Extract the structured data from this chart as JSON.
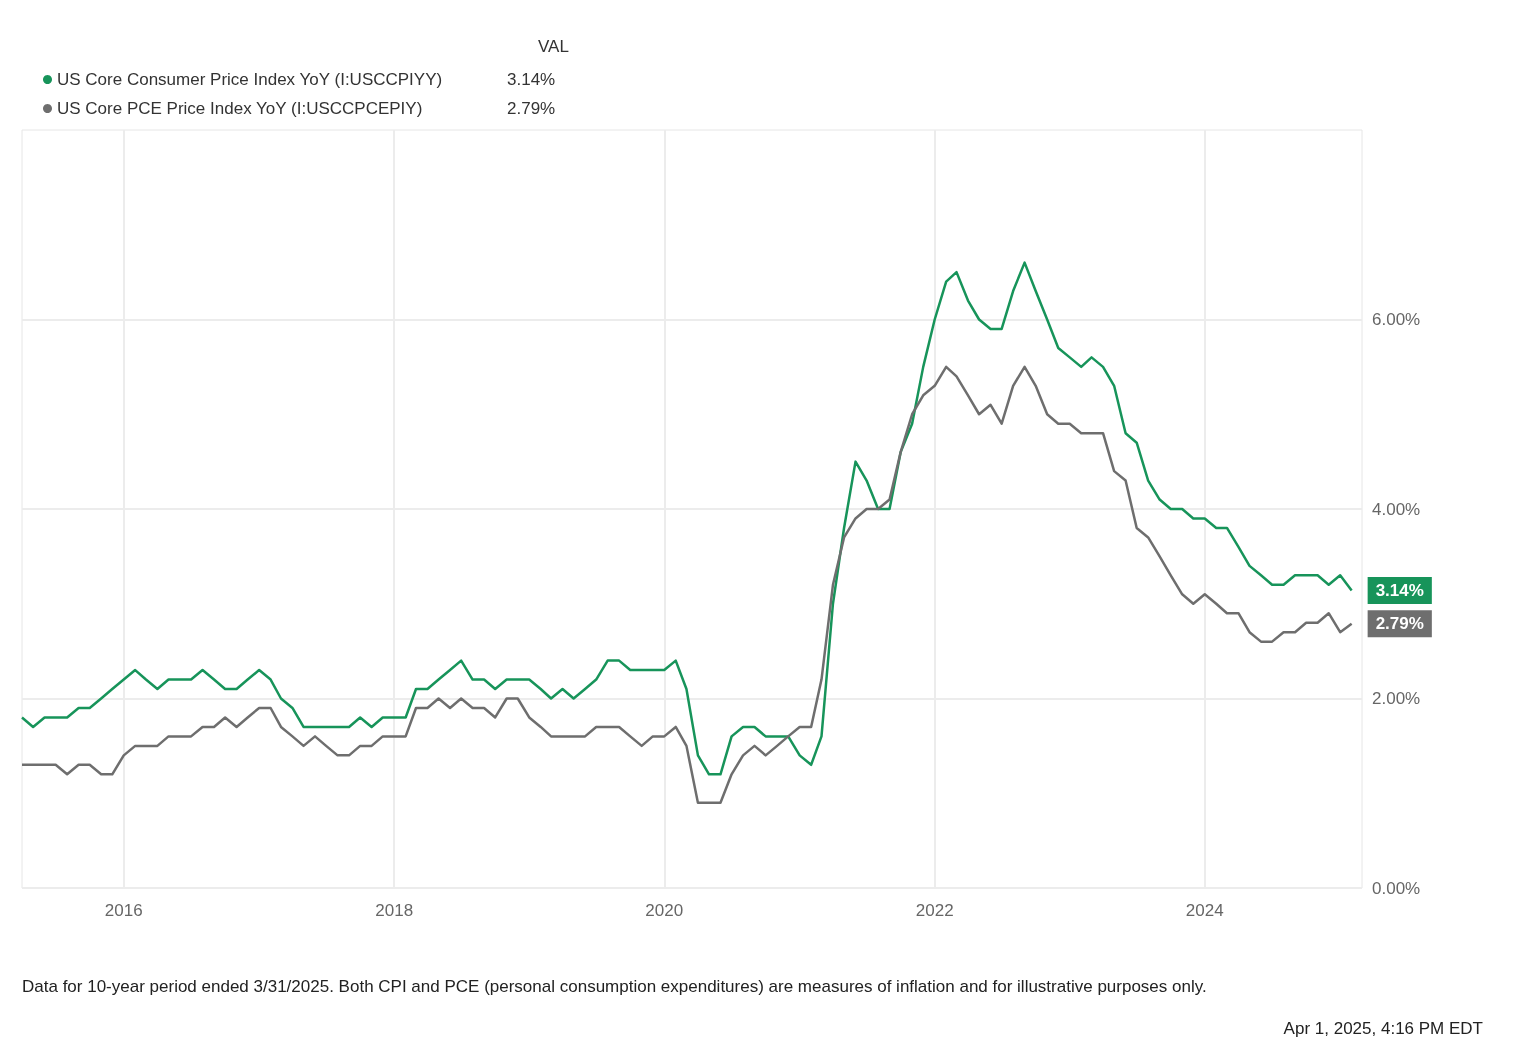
{
  "chart_data": {
    "type": "line",
    "legend_title": "VAL",
    "legend": "top left",
    "grid": true,
    "marker": "none",
    "line_style": "solid",
    "xlim": [
      "2015-04",
      "2025-03"
    ],
    "xticks": [
      "2016",
      "2018",
      "2020",
      "2022",
      "2024"
    ],
    "ylim": [
      0,
      8
    ],
    "yticks": [
      {
        "value": 0,
        "label": "0.00%"
      },
      {
        "value": 2,
        "label": "2.00%"
      },
      {
        "value": 4,
        "label": "4.00%"
      },
      {
        "value": 6,
        "label": "6.00%"
      }
    ],
    "x": [
      "2015-04",
      "2015-05",
      "2015-06",
      "2015-07",
      "2015-08",
      "2015-09",
      "2015-10",
      "2015-11",
      "2015-12",
      "2016-01",
      "2016-02",
      "2016-03",
      "2016-04",
      "2016-05",
      "2016-06",
      "2016-07",
      "2016-08",
      "2016-09",
      "2016-10",
      "2016-11",
      "2016-12",
      "2017-01",
      "2017-02",
      "2017-03",
      "2017-04",
      "2017-05",
      "2017-06",
      "2017-07",
      "2017-08",
      "2017-09",
      "2017-10",
      "2017-11",
      "2017-12",
      "2018-01",
      "2018-02",
      "2018-03",
      "2018-04",
      "2018-05",
      "2018-06",
      "2018-07",
      "2018-08",
      "2018-09",
      "2018-10",
      "2018-11",
      "2018-12",
      "2019-01",
      "2019-02",
      "2019-03",
      "2019-04",
      "2019-05",
      "2019-06",
      "2019-07",
      "2019-08",
      "2019-09",
      "2019-10",
      "2019-11",
      "2019-12",
      "2020-01",
      "2020-02",
      "2020-03",
      "2020-04",
      "2020-05",
      "2020-06",
      "2020-07",
      "2020-08",
      "2020-09",
      "2020-10",
      "2020-11",
      "2020-12",
      "2021-01",
      "2021-02",
      "2021-03",
      "2021-04",
      "2021-05",
      "2021-06",
      "2021-07",
      "2021-08",
      "2021-09",
      "2021-10",
      "2021-11",
      "2021-12",
      "2022-01",
      "2022-02",
      "2022-03",
      "2022-04",
      "2022-05",
      "2022-06",
      "2022-07",
      "2022-08",
      "2022-09",
      "2022-10",
      "2022-11",
      "2022-12",
      "2023-01",
      "2023-02",
      "2023-03",
      "2023-04",
      "2023-05",
      "2023-06",
      "2023-07",
      "2023-08",
      "2023-09",
      "2023-10",
      "2023-11",
      "2023-12",
      "2024-01",
      "2024-02",
      "2024-03",
      "2024-04",
      "2024-05",
      "2024-06",
      "2024-07",
      "2024-08",
      "2024-09",
      "2024-10",
      "2024-11",
      "2024-12",
      "2025-01",
      "2025-02"
    ],
    "series": [
      {
        "name": "US Core Consumer Price Index YoY (I:USCCPIYY)",
        "color": "#17945a",
        "values": [
          1.8,
          1.7,
          1.8,
          1.8,
          1.8,
          1.9,
          1.9,
          2.0,
          2.1,
          2.2,
          2.3,
          2.2,
          2.1,
          2.2,
          2.2,
          2.2,
          2.3,
          2.2,
          2.1,
          2.1,
          2.2,
          2.3,
          2.2,
          2.0,
          1.9,
          1.7,
          1.7,
          1.7,
          1.7,
          1.7,
          1.8,
          1.7,
          1.8,
          1.8,
          1.8,
          2.1,
          2.1,
          2.2,
          2.3,
          2.4,
          2.2,
          2.2,
          2.1,
          2.2,
          2.2,
          2.2,
          2.1,
          2.0,
          2.1,
          2.0,
          2.1,
          2.2,
          2.4,
          2.4,
          2.3,
          2.3,
          2.3,
          2.3,
          2.4,
          2.1,
          1.4,
          1.2,
          1.2,
          1.6,
          1.7,
          1.7,
          1.6,
          1.6,
          1.6,
          1.4,
          1.3,
          1.6,
          3.0,
          3.8,
          4.5,
          4.3,
          4.0,
          4.0,
          4.6,
          4.9,
          5.5,
          6.0,
          6.4,
          6.5,
          6.2,
          6.0,
          5.9,
          5.9,
          6.3,
          6.6,
          6.3,
          6.0,
          5.7,
          5.6,
          5.5,
          5.6,
          5.5,
          5.3,
          4.8,
          4.7,
          4.3,
          4.1,
          4.0,
          4.0,
          3.9,
          3.9,
          3.8,
          3.8,
          3.6,
          3.4,
          3.3,
          3.2,
          3.2,
          3.3,
          3.3,
          3.3,
          3.2,
          3.3,
          3.14
        ],
        "value_labels": [
          null,
          null,
          null,
          null,
          null,
          null,
          null,
          null,
          null,
          null,
          null,
          null,
          null,
          null,
          null,
          null,
          null,
          null,
          null,
          null,
          null,
          null,
          null,
          null,
          null,
          null,
          null,
          null,
          null,
          null,
          null,
          null,
          null,
          null,
          null,
          null,
          null,
          null,
          null,
          null,
          null,
          null,
          null,
          null,
          null,
          null,
          null,
          null,
          null,
          null,
          null,
          null,
          null,
          null,
          null,
          null,
          null,
          null,
          null,
          null,
          null,
          null,
          null,
          null,
          null,
          null,
          null,
          null,
          null,
          null,
          null,
          null,
          null,
          null,
          null,
          null,
          null,
          null,
          null,
          null,
          null,
          null,
          null,
          null,
          null,
          null,
          null,
          null,
          null,
          null,
          null,
          null,
          null,
          null,
          null,
          null,
          null,
          null,
          null,
          null,
          null,
          null,
          null,
          null,
          null,
          null,
          null,
          null,
          null,
          null,
          null,
          null,
          null,
          null,
          null,
          null,
          null,
          null,
          "3.14%"
        ]
      },
      {
        "name": "US Core PCE Price Index YoY (I:USCCPCEPIY)",
        "color": "#6e6e6e",
        "values": [
          1.3,
          1.3,
          1.3,
          1.3,
          1.2,
          1.3,
          1.3,
          1.2,
          1.2,
          1.4,
          1.5,
          1.5,
          1.5,
          1.6,
          1.6,
          1.6,
          1.7,
          1.7,
          1.8,
          1.7,
          1.8,
          1.9,
          1.9,
          1.7,
          1.6,
          1.5,
          1.6,
          1.5,
          1.4,
          1.4,
          1.5,
          1.5,
          1.6,
          1.6,
          1.6,
          1.9,
          1.9,
          2.0,
          1.9,
          2.0,
          1.9,
          1.9,
          1.8,
          2.0,
          2.0,
          1.8,
          1.7,
          1.6,
          1.6,
          1.6,
          1.6,
          1.7,
          1.7,
          1.7,
          1.6,
          1.5,
          1.6,
          1.6,
          1.7,
          1.5,
          0.9,
          0.9,
          0.9,
          1.2,
          1.4,
          1.5,
          1.4,
          1.5,
          1.6,
          1.7,
          1.7,
          2.2,
          3.2,
          3.7,
          3.9,
          4.0,
          4.0,
          4.1,
          4.6,
          5.0,
          5.2,
          5.3,
          5.5,
          5.4,
          5.2,
          5.0,
          5.1,
          4.9,
          5.3,
          5.5,
          5.3,
          5.0,
          4.9,
          4.9,
          4.8,
          4.8,
          4.8,
          4.4,
          4.3,
          3.8,
          3.7,
          3.5,
          3.3,
          3.1,
          3.0,
          3.1,
          3.0,
          2.9,
          2.9,
          2.7,
          2.6,
          2.6,
          2.7,
          2.7,
          2.8,
          2.8,
          2.9,
          2.7,
          2.79
        ],
        "value_labels": [
          null,
          null,
          null,
          null,
          null,
          null,
          null,
          null,
          null,
          null,
          null,
          null,
          null,
          null,
          null,
          null,
          null,
          null,
          null,
          null,
          null,
          null,
          null,
          null,
          null,
          null,
          null,
          null,
          null,
          null,
          null,
          null,
          null,
          null,
          null,
          null,
          null,
          null,
          null,
          null,
          null,
          null,
          null,
          null,
          null,
          null,
          null,
          null,
          null,
          null,
          null,
          null,
          null,
          null,
          null,
          null,
          null,
          null,
          null,
          null,
          null,
          null,
          null,
          null,
          null,
          null,
          null,
          null,
          null,
          null,
          null,
          null,
          null,
          null,
          null,
          null,
          null,
          null,
          null,
          null,
          null,
          null,
          null,
          null,
          null,
          null,
          null,
          null,
          null,
          null,
          null,
          null,
          null,
          null,
          null,
          null,
          null,
          null,
          null,
          null,
          null,
          null,
          null,
          null,
          null,
          null,
          null,
          null,
          null,
          null,
          null,
          null,
          null,
          null,
          null,
          null,
          null,
          null,
          "2.79%"
        ]
      }
    ],
    "annotations": [
      "Data for 10-year period ended 3/31/2025. Both CPI and PCE (personal consumption expenditures) are measures of inflation and for illustrative purposes only.",
      "Apr 1, 2025, 4:16 PM EDT"
    ]
  }
}
